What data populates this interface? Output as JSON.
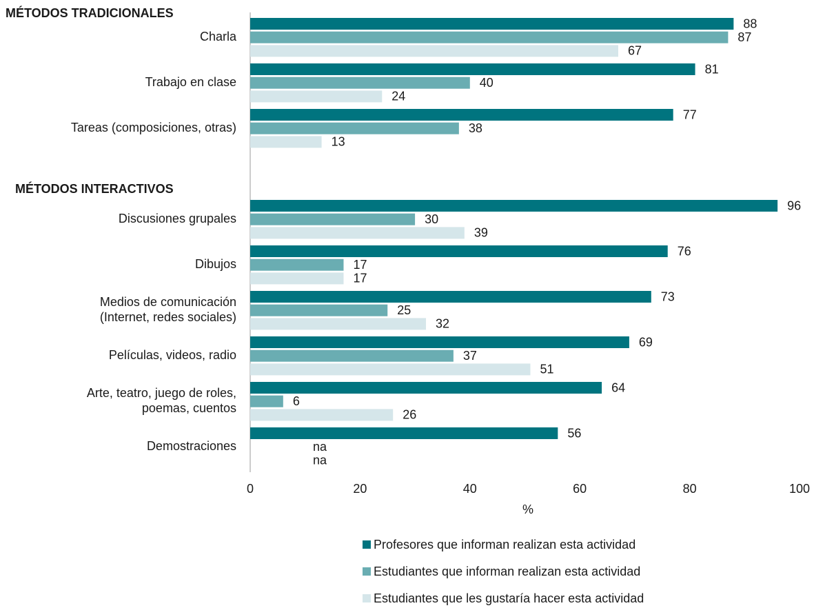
{
  "chart_data": {
    "type": "hbar",
    "groups": [
      {
        "title": "MÉTODOS TRADICIONALES",
        "categories": [
          "Charla",
          "Trabajo en clase",
          "Tareas (composiciones, otras)"
        ]
      },
      {
        "title": "MÉTODOS INTERACTIVOS",
        "categories": [
          "Discusiones grupales",
          "Dibujos",
          "Medios de comunicación\n(Internet, redes sociales)",
          "Películas, videos, radio",
          "Arte, teatro, juego de roles,\npoemas, cuentos",
          "Demostraciones"
        ]
      }
    ],
    "series": [
      {
        "name": "Profesores que informan realizan esta actividad",
        "color": "#00747f",
        "values": [
          88,
          81,
          77,
          96,
          76,
          73,
          69,
          64,
          56
        ]
      },
      {
        "name": "Estudiantes que informan realizan esta actividad",
        "color": "#6aadb2",
        "values": [
          87,
          40,
          38,
          30,
          17,
          25,
          37,
          6,
          null
        ],
        "value_labels": [
          null,
          null,
          null,
          null,
          null,
          null,
          null,
          null,
          "na"
        ]
      },
      {
        "name": "Estudiantes que les gustaría hacer esta actividad",
        "color": "#d5e6ea",
        "values": [
          67,
          24,
          13,
          39,
          17,
          32,
          51,
          26,
          null
        ],
        "value_labels": [
          null,
          null,
          null,
          null,
          null,
          null,
          null,
          null,
          "na"
        ]
      }
    ],
    "xlabel": "%",
    "xlim": [
      0,
      100
    ],
    "xticks": [
      0,
      20,
      40,
      60,
      80,
      100
    ],
    "grid": false
  }
}
